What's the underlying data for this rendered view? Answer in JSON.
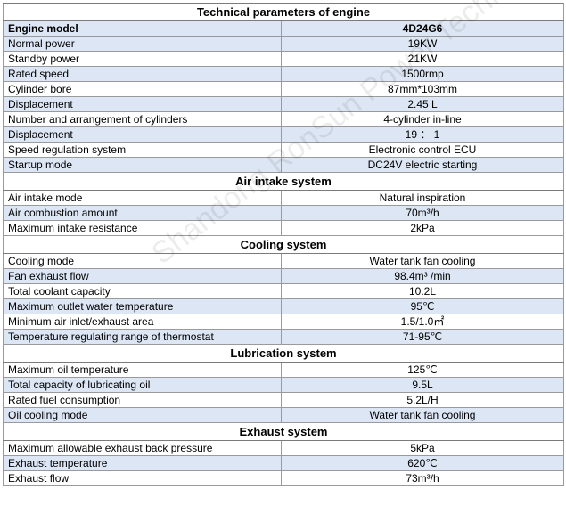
{
  "title": "Technical parameters of engine",
  "model_row": {
    "label": "Engine model",
    "value": "4D24G6"
  },
  "general_rows": [
    {
      "label": "Normal power",
      "value": "19KW"
    },
    {
      "label": "Standby power",
      "value": "21KW"
    },
    {
      "label": "Rated speed",
      "value": "1500rmp"
    },
    {
      "label": "Cylinder bore",
      "value": "87mm*103mm"
    },
    {
      "label": "Displacement",
      "value": "2.45 L"
    },
    {
      "label": "Number and arrangement of cylinders",
      "value": "4-cylinder in-line"
    },
    {
      "label": "Displacement",
      "value": "19 ： 1"
    },
    {
      "label": "Speed regulation system",
      "value": "Electronic control ECU"
    },
    {
      "label": "Startup mode",
      "value": "DC24V electric starting"
    }
  ],
  "air_intake": {
    "title": "Air intake system",
    "rows": [
      {
        "label": "Air intake mode",
        "value": "Natural inspiration"
      },
      {
        "label": "Air combustion amount",
        "value": "70m³/h"
      },
      {
        "label": "Maximum intake resistance",
        "value": "2kPa"
      }
    ]
  },
  "cooling": {
    "title": "Cooling system",
    "rows": [
      {
        "label": "Cooling mode",
        "value": "Water tank fan cooling"
      },
      {
        "label": "Fan exhaust flow",
        "value": "98.4m³ /min"
      },
      {
        "label": "Total coolant capacity",
        "value": "10.2L"
      },
      {
        "label": "Maximum outlet water temperature",
        "value": "95℃"
      },
      {
        "label": "Minimum air inlet/exhaust area",
        "value": "1.5/1.0㎡"
      },
      {
        "label": "Temperature regulating range of thermostat",
        "value": "71-95℃"
      }
    ]
  },
  "lubrication": {
    "title": "Lubrication system",
    "rows": [
      {
        "label": "Maximum oil temperature",
        "value": "125℃"
      },
      {
        "label": "Total capacity of lubricating oil",
        "value": "9.5L"
      },
      {
        "label": "Rated fuel consumption",
        "value": "5.2L/H"
      },
      {
        "label": "Oil cooling mode",
        "value": "Water tank fan cooling"
      }
    ]
  },
  "exhaust": {
    "title": "Exhaust system",
    "rows": [
      {
        "label": "Maximum allowable exhaust back pressure",
        "value": "5kPa"
      },
      {
        "label": "Exhaust temperature",
        "value": "620℃"
      },
      {
        "label": "Exhaust flow",
        "value": "73m³/h"
      }
    ]
  },
  "watermark": "Shandong RonSun Power Technology Co.,",
  "colors": {
    "band": "#dde6f4",
    "border": "#9a9a9a"
  }
}
